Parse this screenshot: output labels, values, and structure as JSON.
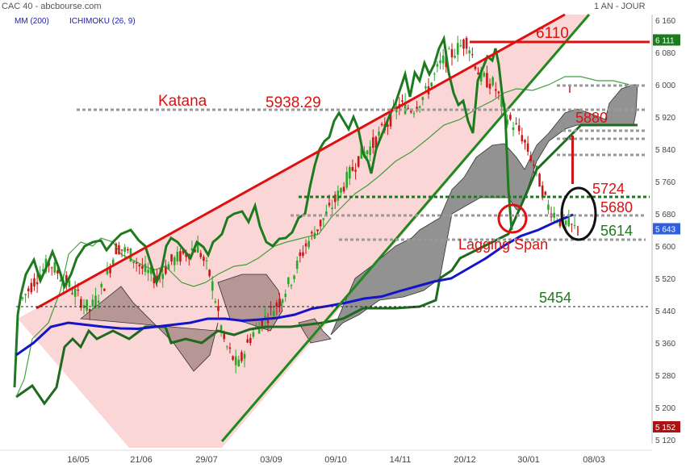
{
  "header": {
    "title": "CAC 40 - abcbourse.com",
    "period": "1 AN - JOUR",
    "indicator_ma": "MM (200)",
    "indicator_ichimoku": "ICHIMOKU (26, 9)"
  },
  "chart_data": {
    "type": "line",
    "subtype": "candlestick with Ichimoku cloud",
    "title": "CAC 40",
    "x_tick_labels": [
      "16/05",
      "21/06",
      "29/07",
      "03/09",
      "09/10",
      "14/11",
      "20/12",
      "30/01",
      "08/03"
    ],
    "y_tick_labels": [
      "6 160",
      "6 080",
      "6 000",
      "5 920",
      "5 840",
      "5 760",
      "5 680",
      "5 600",
      "5 520",
      "5 440",
      "5 360",
      "5 280",
      "5 200",
      "5 120"
    ],
    "ylim": [
      5120,
      6160
    ],
    "price_badges": [
      {
        "label": "6 111",
        "value": 6111,
        "color": "#1e7a1e"
      },
      {
        "label": "5 643",
        "value": 5643,
        "color": "#2f5fe0"
      },
      {
        "label": "5 152",
        "value": 5152,
        "color": "#b01010"
      }
    ],
    "series": [
      {
        "name": "MM (200)",
        "color": "#1414c8",
        "values": [
          5330,
          5360,
          5400,
          5410,
          5405,
          5400,
          5396,
          5395,
          5400,
          5405,
          5410,
          5420,
          5420,
          5415,
          5418,
          5422,
          5430,
          5445,
          5452,
          5460,
          5470,
          5475,
          5488,
          5500,
          5512,
          5520,
          5545,
          5570,
          5600,
          5625,
          5640,
          5660,
          5678
        ]
      },
      {
        "name": "Close",
        "color": "#555555",
        "values": [
          5470,
          5520,
          5560,
          5520,
          5480,
          5440,
          5500,
          5600,
          5580,
          5540,
          5520,
          5560,
          5580,
          5600,
          5520,
          5360,
          5300,
          5380,
          5420,
          5460,
          5520,
          5600,
          5650,
          5700,
          5760,
          5820,
          5850,
          5900,
          5950,
          5940,
          5980,
          6050,
          6080,
          6110,
          6020,
          6000,
          5920,
          5880,
          5800,
          5700,
          5660,
          5643
        ]
      }
    ],
    "annotations": [
      {
        "text": "Katana",
        "color": "#e01010"
      },
      {
        "text": "5938.29",
        "value": 5938.29,
        "color": "#e01010"
      },
      {
        "text": "6110",
        "value": 6110,
        "color": "#e01010"
      },
      {
        "text": "5880",
        "value": 5880,
        "color": "#e01010"
      },
      {
        "text": "5724",
        "value": 5724,
        "color": "#e01010"
      },
      {
        "text": "5680",
        "value": 5680,
        "color": "#e01010"
      },
      {
        "text": "5614",
        "value": 5614,
        "color": "#1e7a1e"
      },
      {
        "text": "5454",
        "value": 5454,
        "color": "#1e7a1e"
      },
      {
        "text": "Lagging Span",
        "color": "#e01010"
      }
    ],
    "grid": false,
    "colors": {
      "up": "#2aa82a",
      "down": "#c81818",
      "cloud": "#808080",
      "wedge": "#fbd6d6",
      "lagging": "#1e7a1e"
    }
  }
}
